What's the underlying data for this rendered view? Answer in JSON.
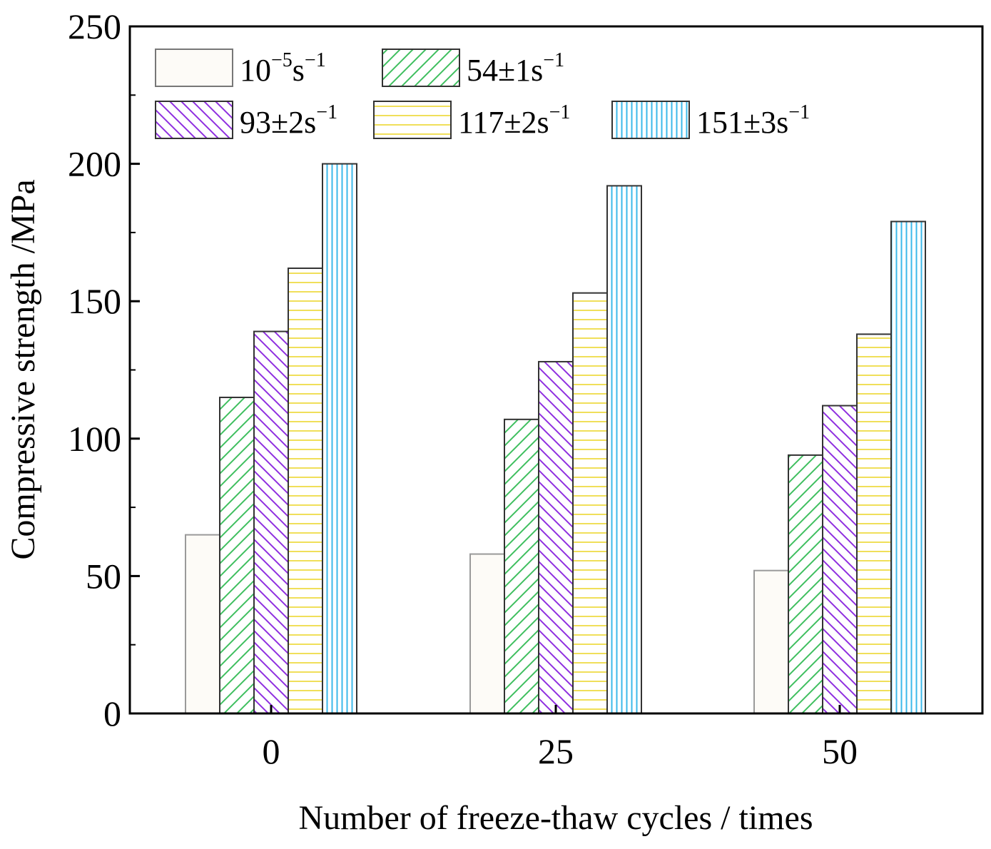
{
  "chart_data": {
    "type": "bar",
    "title": "",
    "xlabel": "Number of freeze-thaw cycles / times",
    "ylabel": "Compressive strength /MPa",
    "categories": [
      "0",
      "25",
      "50"
    ],
    "ylim": [
      0,
      250
    ],
    "yticks": [
      "0",
      "50",
      "100",
      "150",
      "200",
      "250"
    ],
    "grid": false,
    "legend_position": "top-left, inside plot, two rows",
    "series": [
      {
        "name": "10−5s−1",
        "label_base": "10",
        "label_sup1": "−5",
        "label_mid": "s",
        "label_sup2": "−1",
        "pattern": "plain",
        "color": "#9a9a9a",
        "fill": "#fdfbf7",
        "values": [
          65,
          58,
          52
        ]
      },
      {
        "name": "54±1s−1",
        "label_base": "54±1s",
        "label_sup2": "−1",
        "pattern": "diagonal-up",
        "color": "#3fbf5f",
        "values": [
          115,
          107,
          94
        ]
      },
      {
        "name": "93±2s−1",
        "label_base": "93±2s",
        "label_sup2": "−1",
        "pattern": "diagonal-down",
        "color": "#8f2fe0",
        "values": [
          139,
          128,
          112
        ]
      },
      {
        "name": "117±2s−1",
        "label_base": "117±2s",
        "label_sup2": "−1",
        "pattern": "horizontal",
        "color": "#f0df5a",
        "values": [
          162,
          153,
          138
        ]
      },
      {
        "name": "151±3s−1",
        "label_base": "151±3s",
        "label_sup2": "−1",
        "pattern": "vertical",
        "color": "#3bb8ea",
        "values": [
          200,
          192,
          179
        ]
      }
    ]
  }
}
